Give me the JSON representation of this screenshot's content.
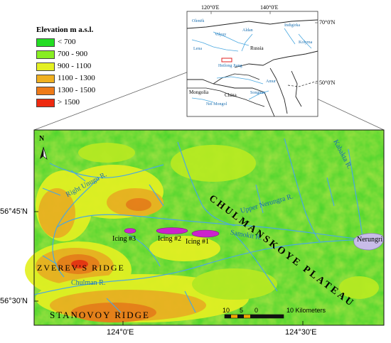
{
  "legend": {
    "title": "Elevation m a.s.l.",
    "items": [
      {
        "label": "< 700",
        "color": "#22dd22"
      },
      {
        "label": "700 - 900",
        "color": "#88ee22"
      },
      {
        "label": "900 - 1100",
        "color": "#e4f022"
      },
      {
        "label": "1100 - 1300",
        "color": "#f0b020"
      },
      {
        "label": "1300 - 1500",
        "color": "#ee7a18"
      },
      {
        "label": "> 1500",
        "color": "#ee2a10"
      }
    ]
  },
  "inset": {
    "lon_labels": [
      "120°0'E",
      "140°0'E"
    ],
    "lat_labels": [
      "70°0'N",
      "50°0'N"
    ],
    "places": [
      "Olenëk",
      "Vilyuy",
      "Lena",
      "Aldan",
      "Indigirka",
      "Kolyma",
      "Russia",
      "Heilong Jiang",
      "Mongolia",
      "China",
      "Songhua",
      "Nei Mongol",
      "Amur"
    ]
  },
  "map": {
    "lat_labels": [
      "56°45'N",
      "56°30'N"
    ],
    "lon_labels": [
      "124°0'E",
      "124°30'E"
    ],
    "labels": {
      "plateau": "CHULMANSKOYE PLATEAU",
      "zverev": "ZVEREV'S RIDGE",
      "stanovoy": "STANOVOY RIDGE",
      "right_unugu": "Right Unugu R.",
      "upper_nerungra": "Upper Nerungra R.",
      "samokit": "Samokit R.",
      "kabakta": "Kabakta R.",
      "chulman": "Chulman R.",
      "nerungri": "Nerungri"
    },
    "icings": [
      "Icing #1",
      "Icing #2",
      "Icing #3"
    ],
    "north": "N",
    "scale": {
      "ticks": [
        "10",
        "5",
        "0"
      ],
      "label": "10 Kilometers"
    }
  },
  "colors": {
    "icing": "#cc22cc",
    "river": "#4aa8e0",
    "town": "#c8bce8"
  }
}
